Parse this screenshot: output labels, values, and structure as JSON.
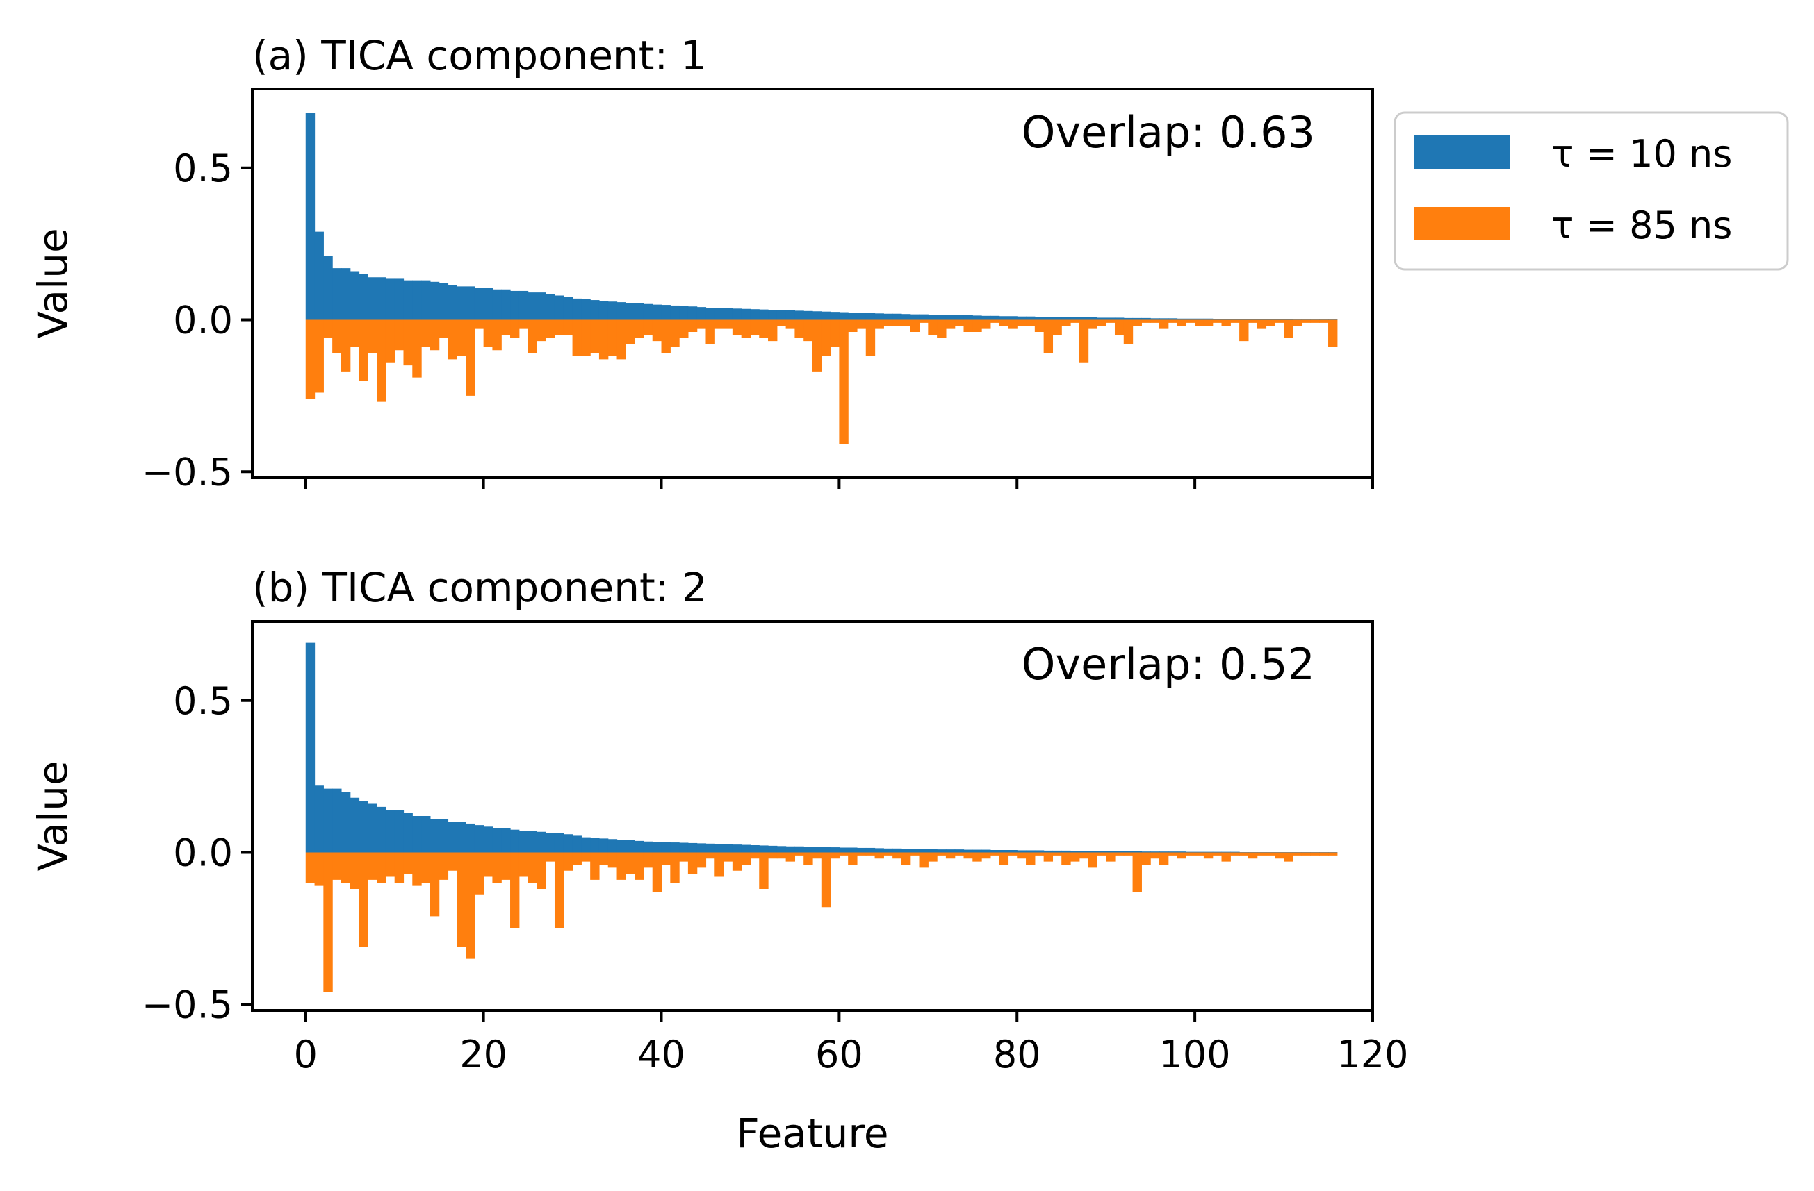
{
  "colors": {
    "series_1": "#1f77b4",
    "series_2": "#ff7f0e"
  },
  "legend": {
    "placement": "outside-right-top",
    "items": [
      {
        "label": "τ = 10 ns",
        "color": "#1f77b4"
      },
      {
        "label": "τ = 85 ns",
        "color": "#ff7f0e"
      }
    ]
  },
  "shared_xlabel": "Feature",
  "chart_data": [
    {
      "type": "bar",
      "title": "(a) TICA component: 1",
      "annotation": "Overlap: 0.63",
      "xlabel": "",
      "ylabel": "Value",
      "xlim": [
        -6,
        120
      ],
      "ylim": [
        -0.52,
        0.76
      ],
      "xticks": [
        0,
        20,
        40,
        60,
        80,
        100,
        120
      ],
      "xtick_labels": [],
      "yticks": [
        -0.5,
        0.0,
        0.5
      ],
      "ytick_labels": [
        "−0.5",
        "0.0",
        "0.5"
      ],
      "grid": false,
      "x_start": 0,
      "bar_width": 1,
      "series": [
        {
          "name": "τ = 10 ns",
          "color": "#1f77b4",
          "values": [
            0.68,
            0.29,
            0.21,
            0.17,
            0.17,
            0.16,
            0.15,
            0.14,
            0.14,
            0.135,
            0.135,
            0.13,
            0.13,
            0.13,
            0.125,
            0.12,
            0.115,
            0.11,
            0.11,
            0.105,
            0.105,
            0.1,
            0.1,
            0.095,
            0.095,
            0.09,
            0.09,
            0.085,
            0.08,
            0.075,
            0.07,
            0.068,
            0.065,
            0.062,
            0.06,
            0.058,
            0.056,
            0.054,
            0.052,
            0.05,
            0.049,
            0.047,
            0.045,
            0.044,
            0.042,
            0.04,
            0.039,
            0.038,
            0.037,
            0.036,
            0.035,
            0.034,
            0.033,
            0.032,
            0.031,
            0.03,
            0.029,
            0.028,
            0.027,
            0.026,
            0.025,
            0.024,
            0.023,
            0.022,
            0.021,
            0.02,
            0.02,
            0.019,
            0.018,
            0.018,
            0.017,
            0.016,
            0.016,
            0.015,
            0.015,
            0.014,
            0.013,
            0.013,
            0.012,
            0.012,
            0.011,
            0.011,
            0.01,
            0.01,
            0.009,
            0.009,
            0.009,
            0.008,
            0.008,
            0.007,
            0.007,
            0.007,
            0.006,
            0.006,
            0.006,
            0.005,
            0.005,
            0.005,
            0.004,
            0.004,
            0.004,
            0.004,
            0.003,
            0.003,
            0.003,
            0.003,
            0.002,
            0.002,
            0.002,
            0.002,
            0.002,
            0.001,
            0.001,
            0.001,
            0.001,
            0.001
          ]
        },
        {
          "name": "τ = 85 ns",
          "color": "#ff7f0e",
          "values": [
            -0.26,
            -0.24,
            -0.06,
            -0.11,
            -0.17,
            -0.09,
            -0.2,
            -0.11,
            -0.27,
            -0.14,
            -0.1,
            -0.15,
            -0.19,
            -0.09,
            -0.1,
            -0.06,
            -0.13,
            -0.12,
            -0.25,
            -0.03,
            -0.09,
            -0.1,
            -0.05,
            -0.06,
            -0.03,
            -0.11,
            -0.07,
            -0.06,
            -0.05,
            -0.05,
            -0.12,
            -0.12,
            -0.11,
            -0.13,
            -0.12,
            -0.13,
            -0.08,
            -0.06,
            -0.05,
            -0.07,
            -0.11,
            -0.09,
            -0.06,
            -0.04,
            -0.03,
            -0.08,
            -0.03,
            -0.03,
            -0.05,
            -0.06,
            -0.05,
            -0.06,
            -0.07,
            -0.02,
            -0.03,
            -0.06,
            -0.07,
            -0.17,
            -0.12,
            -0.09,
            -0.41,
            -0.04,
            -0.03,
            -0.12,
            -0.03,
            -0.02,
            -0.02,
            -0.02,
            -0.04,
            -0.01,
            -0.05,
            -0.06,
            -0.03,
            -0.02,
            -0.04,
            -0.04,
            -0.03,
            -0.01,
            -0.02,
            -0.03,
            -0.02,
            -0.02,
            -0.04,
            -0.11,
            -0.05,
            -0.02,
            -0.01,
            -0.14,
            -0.03,
            -0.02,
            -0.01,
            -0.05,
            -0.08,
            -0.02,
            -0.01,
            -0.01,
            -0.03,
            -0.01,
            -0.02,
            -0.01,
            -0.02,
            -0.02,
            -0.01,
            -0.02,
            -0.01,
            -0.07,
            -0.01,
            -0.03,
            -0.02,
            -0.01,
            -0.06,
            -0.02,
            -0.01,
            -0.01,
            -0.01,
            -0.09
          ]
        }
      ]
    },
    {
      "type": "bar",
      "title": "(b) TICA component: 2",
      "annotation": "Overlap: 0.52",
      "xlabel": "Feature",
      "ylabel": "Value",
      "xlim": [
        -6,
        120
      ],
      "ylim": [
        -0.52,
        0.76
      ],
      "xticks": [
        0,
        20,
        40,
        60,
        80,
        100,
        120
      ],
      "xtick_labels": [
        "0",
        "20",
        "40",
        "60",
        "80",
        "100",
        "120"
      ],
      "yticks": [
        -0.5,
        0.0,
        0.5
      ],
      "ytick_labels": [
        "−0.5",
        "0.0",
        "0.5"
      ],
      "grid": false,
      "x_start": 0,
      "bar_width": 1,
      "series": [
        {
          "name": "τ = 10 ns",
          "color": "#1f77b4",
          "values": [
            0.69,
            0.22,
            0.21,
            0.21,
            0.2,
            0.18,
            0.17,
            0.16,
            0.15,
            0.14,
            0.14,
            0.13,
            0.12,
            0.12,
            0.11,
            0.11,
            0.1,
            0.1,
            0.095,
            0.09,
            0.085,
            0.08,
            0.08,
            0.075,
            0.072,
            0.07,
            0.068,
            0.065,
            0.063,
            0.06,
            0.055,
            0.05,
            0.048,
            0.046,
            0.044,
            0.042,
            0.04,
            0.038,
            0.036,
            0.035,
            0.034,
            0.033,
            0.032,
            0.031,
            0.03,
            0.029,
            0.028,
            0.027,
            0.026,
            0.025,
            0.024,
            0.023,
            0.022,
            0.021,
            0.02,
            0.02,
            0.019,
            0.018,
            0.018,
            0.017,
            0.016,
            0.016,
            0.015,
            0.015,
            0.014,
            0.013,
            0.013,
            0.012,
            0.012,
            0.011,
            0.011,
            0.01,
            0.01,
            0.01,
            0.009,
            0.009,
            0.009,
            0.008,
            0.008,
            0.008,
            0.007,
            0.007,
            0.007,
            0.006,
            0.006,
            0.006,
            0.005,
            0.005,
            0.005,
            0.005,
            0.004,
            0.004,
            0.004,
            0.004,
            0.003,
            0.003,
            0.003,
            0.003,
            0.003,
            0.002,
            0.002,
            0.002,
            0.002,
            0.002,
            0.002,
            0.001,
            0.001,
            0.001,
            0.001,
            0.001,
            0.001,
            0.001,
            0.001,
            0.001,
            0.001,
            0.001
          ]
        },
        {
          "name": "τ = 85 ns",
          "color": "#ff7f0e",
          "values": [
            -0.1,
            -0.11,
            -0.46,
            -0.09,
            -0.1,
            -0.12,
            -0.31,
            -0.09,
            -0.1,
            -0.08,
            -0.1,
            -0.07,
            -0.11,
            -0.1,
            -0.21,
            -0.09,
            -0.06,
            -0.31,
            -0.35,
            -0.14,
            -0.08,
            -0.1,
            -0.09,
            -0.25,
            -0.08,
            -0.1,
            -0.12,
            -0.03,
            -0.25,
            -0.06,
            -0.04,
            -0.03,
            -0.09,
            -0.04,
            -0.05,
            -0.09,
            -0.07,
            -0.09,
            -0.05,
            -0.13,
            -0.04,
            -0.1,
            -0.03,
            -0.07,
            -0.05,
            -0.02,
            -0.08,
            -0.03,
            -0.06,
            -0.04,
            -0.02,
            -0.12,
            -0.02,
            -0.02,
            -0.03,
            -0.01,
            -0.04,
            -0.02,
            -0.18,
            -0.02,
            -0.01,
            -0.04,
            -0.01,
            -0.01,
            -0.02,
            -0.01,
            -0.02,
            -0.04,
            -0.01,
            -0.05,
            -0.03,
            -0.01,
            -0.02,
            -0.01,
            -0.02,
            -0.03,
            -0.02,
            -0.01,
            -0.04,
            -0.01,
            -0.02,
            -0.04,
            -0.01,
            -0.03,
            -0.01,
            -0.04,
            -0.03,
            -0.02,
            -0.05,
            -0.01,
            -0.03,
            -0.01,
            -0.01,
            -0.13,
            -0.04,
            -0.02,
            -0.04,
            -0.01,
            -0.02,
            -0.01,
            -0.01,
            -0.02,
            -0.01,
            -0.03,
            -0.01,
            -0.01,
            -0.02,
            -0.01,
            -0.01,
            -0.02,
            -0.03,
            -0.01,
            -0.01,
            -0.01,
            -0.01,
            -0.01
          ]
        }
      ]
    }
  ]
}
